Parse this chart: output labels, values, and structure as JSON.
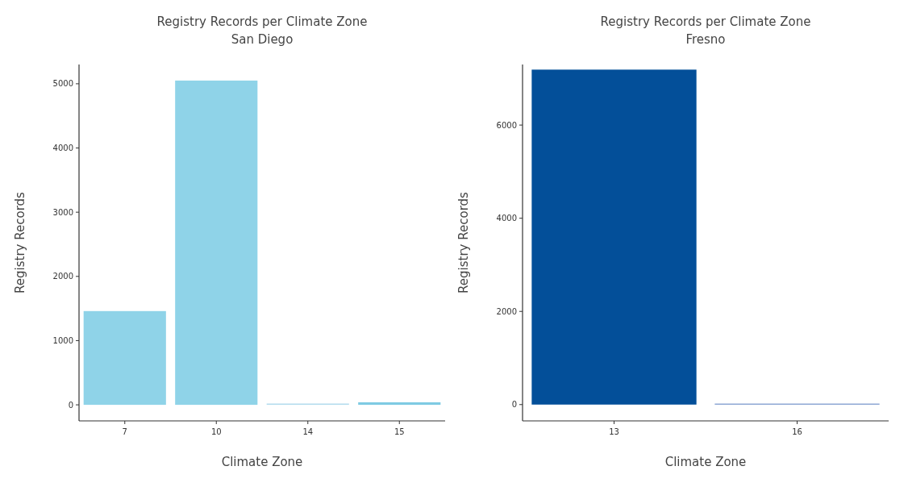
{
  "chart_data": [
    {
      "type": "bar",
      "title": "Registry Records per  Climate Zone",
      "subtitle": "San Diego",
      "xlabel": "Climate Zone",
      "ylabel": "Registry Records",
      "categories": [
        "7",
        "10",
        "14",
        "15"
      ],
      "values": [
        1460,
        5050,
        20,
        40
      ],
      "colors": [
        "#8fd3e8",
        "#8fd3e8",
        "#b4dcee",
        "#7fcbe3"
      ],
      "ylim": [
        -250,
        5300
      ],
      "yticks": [
        0,
        1000,
        2000,
        3000,
        4000,
        5000
      ],
      "grid": false
    },
    {
      "type": "bar",
      "title": "Registry Records per  Climate Zone",
      "subtitle": "Fresno",
      "xlabel": "Climate Zone",
      "ylabel": "Registry Records",
      "categories": [
        "13",
        "16"
      ],
      "values": [
        7190,
        20
      ],
      "colors": [
        "#034f99",
        "#6f8fc8"
      ],
      "ylim": [
        -350,
        7300
      ],
      "yticks": [
        0,
        2000,
        4000,
        6000
      ],
      "grid": false
    }
  ]
}
